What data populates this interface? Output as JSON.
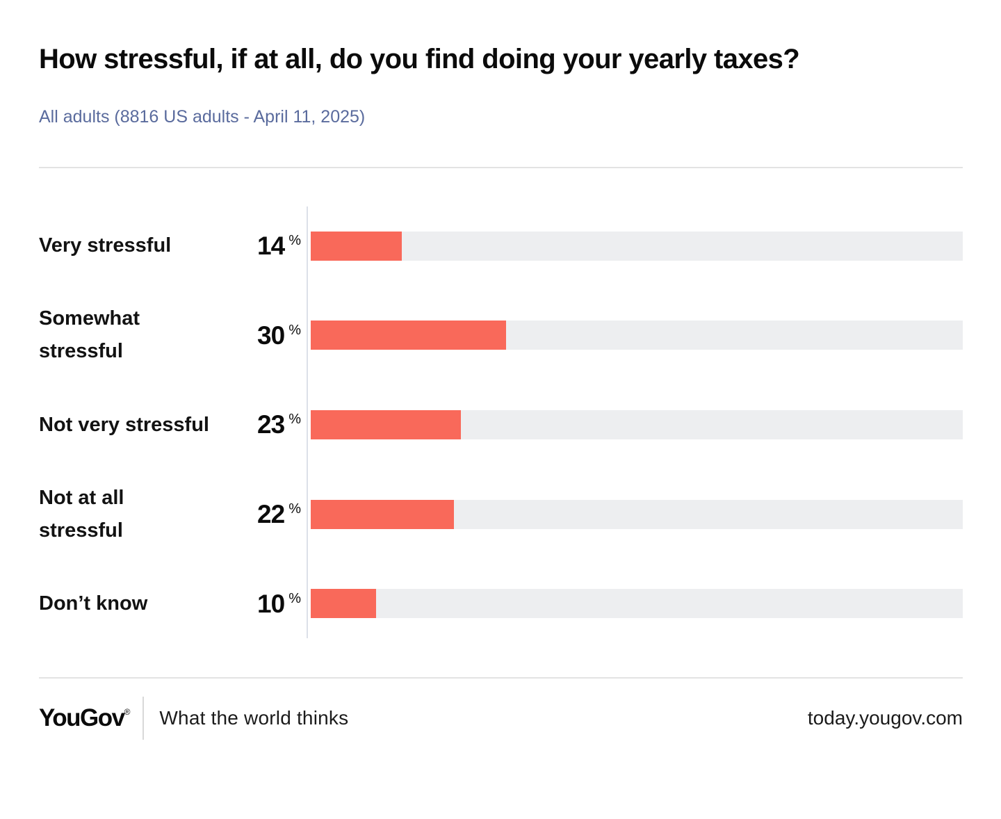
{
  "header": {
    "title": "How stressful, if at all, do you find doing your yearly taxes?",
    "subtitle": "All adults (8816 US adults - April 11, 2025)"
  },
  "chart_data": {
    "type": "bar",
    "orientation": "horizontal",
    "title": "How stressful, if at all, do you find doing your yearly taxes?",
    "subtitle": "All adults (8816 US adults - April 11, 2025)",
    "categories": [
      "Very stressful",
      "Somewhat stressful",
      "Not very stressful",
      "Not at all stressful",
      "Don’t know"
    ],
    "display_labels": [
      "Very stressful",
      "Somewhat\nstressful",
      "Not very stressful",
      "Not at all\nstressful",
      "Don’t know"
    ],
    "values": [
      14,
      30,
      23,
      22,
      10
    ],
    "unit": "%",
    "xlim": [
      0,
      100
    ],
    "grid": false,
    "legend": false,
    "bar_color": "#F9695A",
    "track_color": "#EDEEF0",
    "axis_line_color": "#DCE0E8"
  },
  "footer": {
    "logo_text": "YouGov",
    "registered_mark": "®",
    "tagline": "What the world thinks",
    "url": "today.yougov.com"
  },
  "colors": {
    "background": "#FFFFFF",
    "title_text": "#0B0B0B",
    "subtitle_text": "#5A6B9D",
    "label_text": "#121212",
    "value_text": "#0B0B0B",
    "divider": "#E3E3E3",
    "bar": "#F9695A",
    "bar_track": "#EDEEF0",
    "axis_line": "#DCE0E8",
    "footer_text": "#1B1B1B"
  }
}
